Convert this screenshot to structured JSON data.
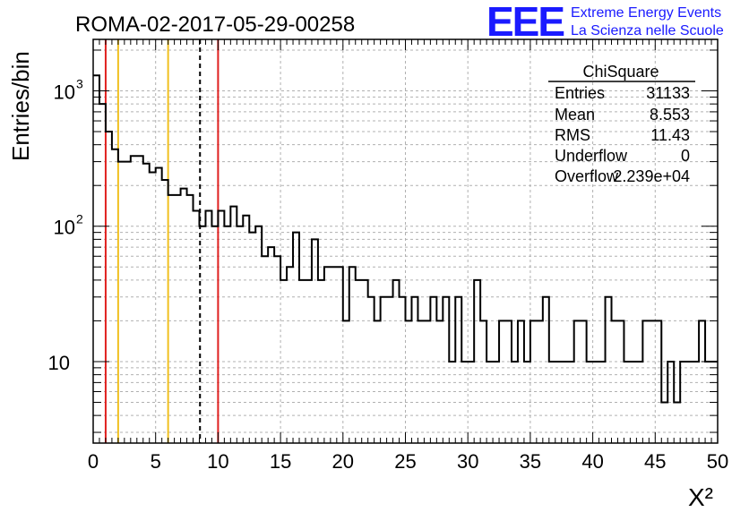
{
  "title": "ROMA-02-2017-05-29-00258",
  "logo": {
    "mark": "EEE",
    "line1": "Extreme Energy Events",
    "line2": "La Scienza nelle Scuole",
    "color": "#1a1aff"
  },
  "stats": {
    "name": "ChiSquare",
    "rows": [
      {
        "label": "Entries",
        "value": "31133"
      },
      {
        "label": "Mean",
        "value": "8.553"
      },
      {
        "label": "RMS",
        "value": "11.43"
      },
      {
        "label": "Underflow",
        "value": "0"
      },
      {
        "label": "Overflow",
        "value": "2.239e+04"
      }
    ]
  },
  "chart_data": {
    "type": "histogram",
    "ylabel": "Entries/bin",
    "xlabel": "X²",
    "xlim": [
      0,
      50
    ],
    "ylim": [
      2.5,
      2400
    ],
    "yscale": "log",
    "grid": true,
    "bin_width": 0.5,
    "xticks": [
      {
        "v": 0,
        "label": "0"
      },
      {
        "v": 5,
        "label": "5"
      },
      {
        "v": 10,
        "label": "10"
      },
      {
        "v": 15,
        "label": "15"
      },
      {
        "v": 20,
        "label": "20"
      },
      {
        "v": 25,
        "label": "25"
      },
      {
        "v": 30,
        "label": "30"
      },
      {
        "v": 35,
        "label": "35"
      },
      {
        "v": 40,
        "label": "40"
      },
      {
        "v": 45,
        "label": "45"
      },
      {
        "v": 50,
        "label": "50"
      }
    ],
    "yticks": [
      {
        "v": 10,
        "label": "10"
      },
      {
        "v": 100,
        "label": "10",
        "sup": "2"
      },
      {
        "v": 1000,
        "label": "10",
        "sup": "3"
      }
    ],
    "counts": [
      1300,
      800,
      500,
      370,
      300,
      300,
      330,
      330,
      290,
      250,
      270,
      220,
      170,
      170,
      190,
      170,
      130,
      100,
      130,
      100,
      130,
      100,
      140,
      100,
      120,
      90,
      100,
      60,
      70,
      60,
      40,
      50,
      90,
      40,
      40,
      80,
      40,
      50,
      50,
      50,
      20,
      50,
      40,
      40,
      30,
      20,
      30,
      30,
      40,
      30,
      20,
      30,
      20,
      20,
      30,
      20,
      30,
      10,
      30,
      10,
      10,
      40,
      20,
      10,
      10,
      20,
      20,
      10,
      20,
      10,
      20,
      20,
      30,
      10,
      10,
      10,
      10,
      20,
      20,
      10,
      10,
      10,
      30,
      20,
      20,
      10,
      10,
      10,
      20,
      20,
      20,
      5,
      10,
      5,
      10,
      10,
      10,
      20,
      10,
      10
    ],
    "vlines": [
      {
        "x": 1,
        "color": "#e0201f",
        "style": "solid"
      },
      {
        "x": 2,
        "color": "#f0c020",
        "style": "solid"
      },
      {
        "x": 6,
        "color": "#f0c020",
        "style": "solid"
      },
      {
        "x": 8.553,
        "color": "#000000",
        "style": "dashed"
      },
      {
        "x": 10,
        "color": "#e0201f",
        "style": "solid"
      }
    ]
  }
}
